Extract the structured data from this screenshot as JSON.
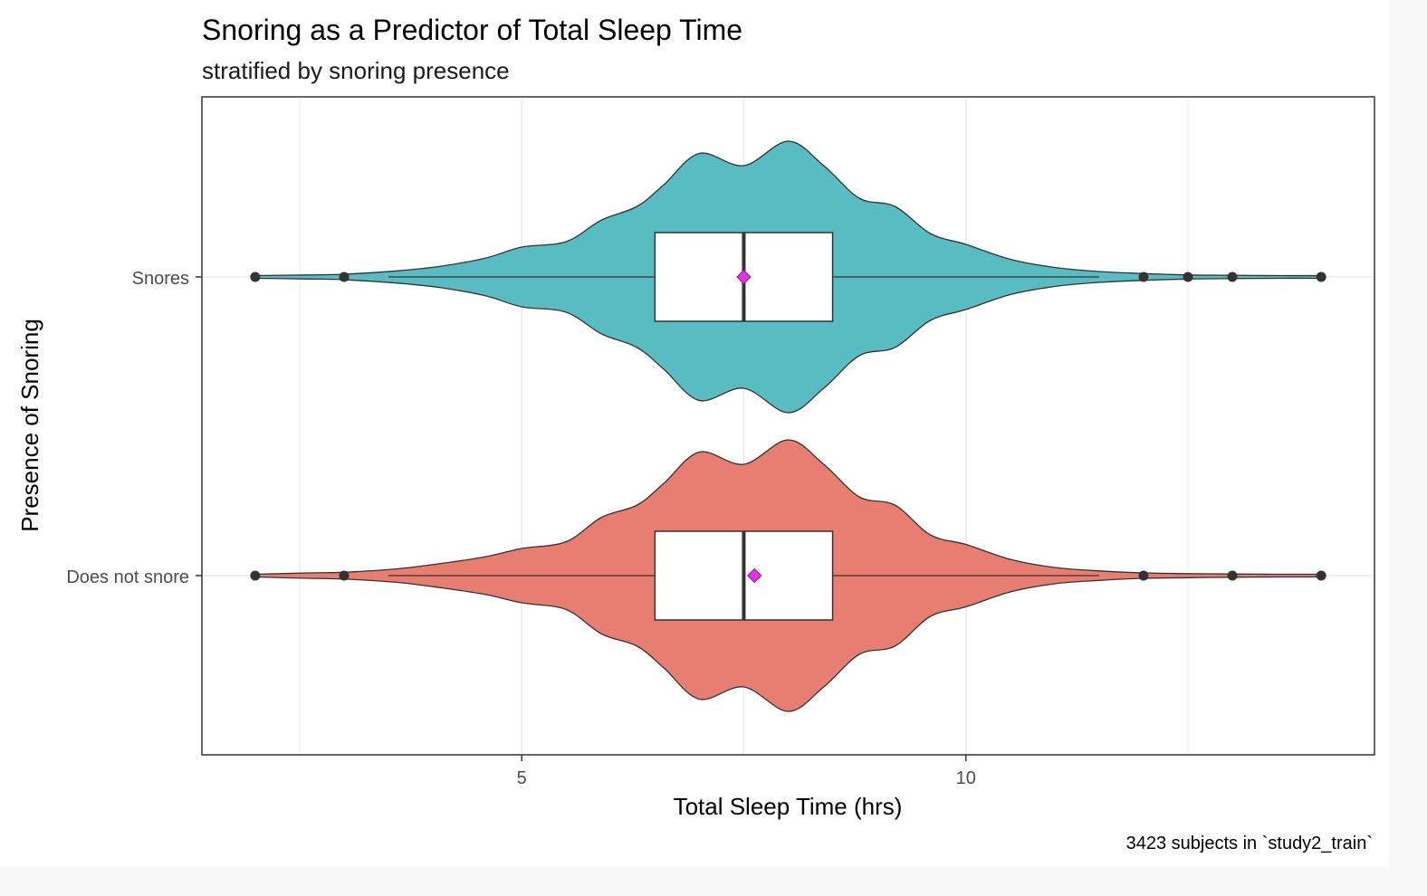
{
  "chart_data": {
    "type": "violin",
    "title": "Snoring as a Predictor of Total Sleep Time",
    "subtitle": "stratified by snoring presence",
    "xlabel": "Total Sleep Time (hrs)",
    "ylabel": "Presence of Snoring",
    "caption": "3423 subjects in `study2_train`",
    "xlim": [
      1.4,
      14.6
    ],
    "x_ticks": [
      5,
      10
    ],
    "x_tick_labels": [
      "5",
      "10"
    ],
    "x_minor_gridlines": [
      2.5,
      7.5,
      12.5
    ],
    "grid": true,
    "legend": "none",
    "categories": [
      "Snores",
      "Does not snore"
    ],
    "series": [
      {
        "category": "Snores",
        "color": "#59bcc3",
        "box": {
          "q1": 6.5,
          "median": 7.5,
          "q3": 8.5,
          "whisker_low": 3.5,
          "whisker_high": 11.5
        },
        "mean": 7.5,
        "outliers": [
          2.0,
          3.0,
          12.0,
          12.5,
          13.0,
          14.0
        ],
        "density_profile": [
          [
            2.0,
            0.01
          ],
          [
            2.6,
            0.015
          ],
          [
            3.0,
            0.02
          ],
          [
            3.6,
            0.045
          ],
          [
            4.1,
            0.08
          ],
          [
            4.6,
            0.14
          ],
          [
            5.0,
            0.22
          ],
          [
            5.5,
            0.26
          ],
          [
            5.9,
            0.42
          ],
          [
            6.3,
            0.52
          ],
          [
            6.6,
            0.68
          ],
          [
            7.0,
            0.91
          ],
          [
            7.5,
            0.82
          ],
          [
            8.0,
            1.0
          ],
          [
            8.4,
            0.82
          ],
          [
            8.8,
            0.58
          ],
          [
            9.2,
            0.52
          ],
          [
            9.6,
            0.32
          ],
          [
            10.0,
            0.24
          ],
          [
            10.5,
            0.13
          ],
          [
            11.0,
            0.07
          ],
          [
            11.5,
            0.04
          ],
          [
            12.0,
            0.025
          ],
          [
            12.5,
            0.015
          ],
          [
            13.0,
            0.012
          ],
          [
            13.5,
            0.01
          ],
          [
            14.0,
            0.01
          ]
        ]
      },
      {
        "category": "Does not snore",
        "color": "#e87e72",
        "box": {
          "q1": 6.5,
          "median": 7.5,
          "q3": 8.5,
          "whisker_low": 3.5,
          "whisker_high": 11.5
        },
        "mean": 7.62,
        "outliers": [
          2.0,
          3.0,
          12.0,
          13.0,
          14.0
        ],
        "density_profile": [
          [
            2.0,
            0.01
          ],
          [
            2.6,
            0.02
          ],
          [
            3.0,
            0.025
          ],
          [
            3.6,
            0.05
          ],
          [
            4.1,
            0.09
          ],
          [
            4.6,
            0.14
          ],
          [
            5.0,
            0.2
          ],
          [
            5.5,
            0.25
          ],
          [
            5.9,
            0.43
          ],
          [
            6.3,
            0.52
          ],
          [
            6.6,
            0.68
          ],
          [
            7.0,
            0.91
          ],
          [
            7.5,
            0.82
          ],
          [
            8.0,
            1.0
          ],
          [
            8.4,
            0.82
          ],
          [
            8.8,
            0.58
          ],
          [
            9.2,
            0.52
          ],
          [
            9.6,
            0.3
          ],
          [
            10.0,
            0.23
          ],
          [
            10.5,
            0.12
          ],
          [
            11.0,
            0.06
          ],
          [
            11.5,
            0.035
          ],
          [
            12.0,
            0.02
          ],
          [
            12.5,
            0.015
          ],
          [
            13.0,
            0.012
          ],
          [
            13.5,
            0.01
          ],
          [
            14.0,
            0.01
          ]
        ]
      }
    ],
    "colors": {
      "mean_marker": "#e033e8",
      "box_fill": "#ffffff",
      "outline": "#333333",
      "gridline": "#ebebeb",
      "panel_border": "#333333"
    }
  }
}
